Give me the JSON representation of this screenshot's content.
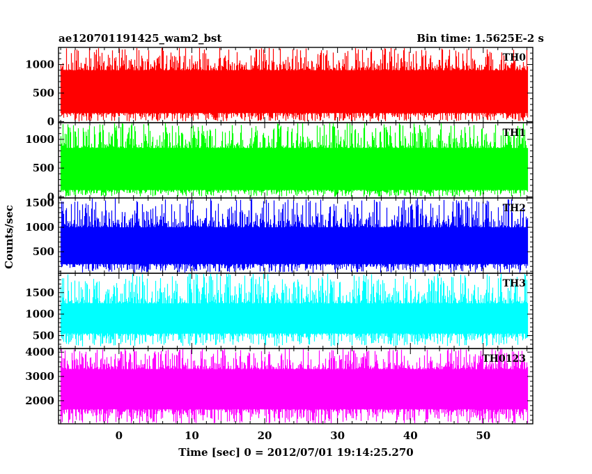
{
  "title_left": "ae120701191425_wam2_bst",
  "title_right": "Bin time: 1.5625E-2 s",
  "chart_data": {
    "type": "line",
    "xlabel": "Time [sec] 0 = 2012/07/01 19:14:25.270",
    "ylabel": "Counts/sec",
    "xlim": [
      -8.3,
      56.8
    ],
    "data_x_range": [
      -8,
      56
    ],
    "bin_time_s": 0.015625,
    "x_ticks": [
      0,
      10,
      20,
      30,
      40,
      50
    ],
    "grid": false,
    "legend": "none",
    "panels": [
      {
        "name": "TH0",
        "color": "#ff0000",
        "ylim": [
          -20,
          1300
        ],
        "y_ticks": [
          0,
          500,
          1000
        ],
        "y_tick_labels": [
          "0",
          "500",
          "1000"
        ],
        "data_min": 0,
        "data_max": 1300,
        "typical_band": [
          150,
          900
        ]
      },
      {
        "name": "TH1",
        "color": "#00ff00",
        "ylim": [
          -20,
          1290
        ],
        "y_ticks": [
          0,
          500,
          1000
        ],
        "y_tick_labels": [
          "0",
          "500",
          "1000"
        ],
        "data_min": 0,
        "data_max": 1290,
        "typical_band": [
          120,
          850
        ]
      },
      {
        "name": "TH2",
        "color": "#0000ff",
        "ylim": [
          60,
          1600
        ],
        "y_ticks": [
          500,
          1000,
          1500
        ],
        "y_tick_labels": [
          "500",
          "1000",
          "1500"
        ],
        "data_min": 70,
        "data_max": 1600,
        "typical_band": [
          250,
          1000
        ]
      },
      {
        "name": "TH3",
        "color": "#00ffff",
        "ylim": [
          200,
          1950
        ],
        "y_ticks": [
          500,
          1000,
          1500
        ],
        "y_tick_labels": [
          "500",
          "1000",
          "1500"
        ],
        "data_min": 250,
        "data_max": 1950,
        "typical_band": [
          550,
          1250
        ]
      },
      {
        "name": "TH0123",
        "color": "#ff00ff",
        "ylim": [
          1050,
          4150
        ],
        "y_ticks": [
          2000,
          3000,
          4000
        ],
        "y_tick_labels": [
          "2000",
          "3000",
          "4000"
        ],
        "data_min": 1050,
        "data_max": 4150,
        "typical_band": [
          1650,
          3300
        ]
      }
    ]
  }
}
